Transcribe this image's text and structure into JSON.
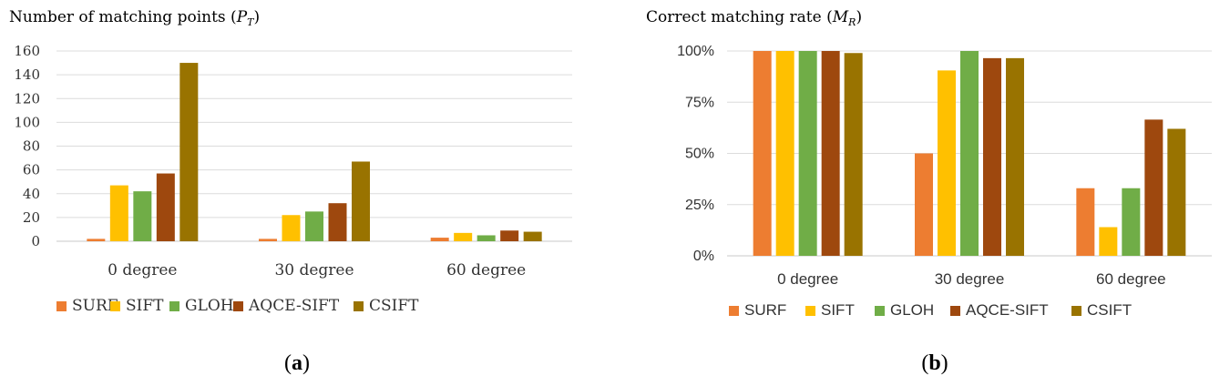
{
  "chart_data": [
    {
      "type": "bar",
      "title": "Number of matching points",
      "title_symbol": "P",
      "title_symbol_sub": "T",
      "categories": [
        "0 degree",
        "30 degree",
        "60 degree"
      ],
      "series": [
        {
          "name": "SURF",
          "color": "#ED7D31",
          "values": [
            2,
            2,
            3
          ]
        },
        {
          "name": "SIFT",
          "color": "#FFC000",
          "values": [
            47,
            22,
            7
          ]
        },
        {
          "name": "GLOH",
          "color": "#70AD47",
          "values": [
            42,
            25,
            5
          ]
        },
        {
          "name": "AQCE-SIFT",
          "color": "#9E480E",
          "values": [
            57,
            32,
            9
          ]
        },
        {
          "name": "CSIFT",
          "color": "#997300",
          "values": [
            150,
            67,
            8
          ]
        }
      ],
      "ylim": [
        0,
        160
      ],
      "yticks": [
        0,
        20,
        40,
        60,
        80,
        100,
        120,
        140,
        160
      ],
      "ytick_labels": [
        "0",
        "20",
        "40",
        "60",
        "80",
        "100",
        "120",
        "140",
        "160"
      ],
      "grid": true,
      "legend": "bottom",
      "panel_label": "a"
    },
    {
      "type": "bar",
      "title": "Correct matching rate",
      "title_symbol": "M",
      "title_symbol_sub": "R",
      "categories": [
        "0 degree",
        "30 degree",
        "60 degree"
      ],
      "series": [
        {
          "name": "SURF",
          "color": "#ED7D31",
          "values": [
            100,
            50,
            33
          ]
        },
        {
          "name": "SIFT",
          "color": "#FFC000",
          "values": [
            100,
            90.5,
            14
          ]
        },
        {
          "name": "GLOH",
          "color": "#70AD47",
          "values": [
            100,
            100,
            33
          ]
        },
        {
          "name": "AQCE-SIFT",
          "color": "#9E480E",
          "values": [
            100,
            96.5,
            66.5
          ]
        },
        {
          "name": "CSIFT",
          "color": "#997300",
          "values": [
            99,
            96.5,
            62
          ]
        }
      ],
      "ylim": [
        0,
        100
      ],
      "yticks": [
        0,
        25,
        50,
        75,
        100
      ],
      "ytick_labels": [
        "0%",
        "25%",
        "50%",
        "75%",
        "100%"
      ],
      "grid": true,
      "legend": "bottom",
      "panel_label": "b"
    }
  ]
}
